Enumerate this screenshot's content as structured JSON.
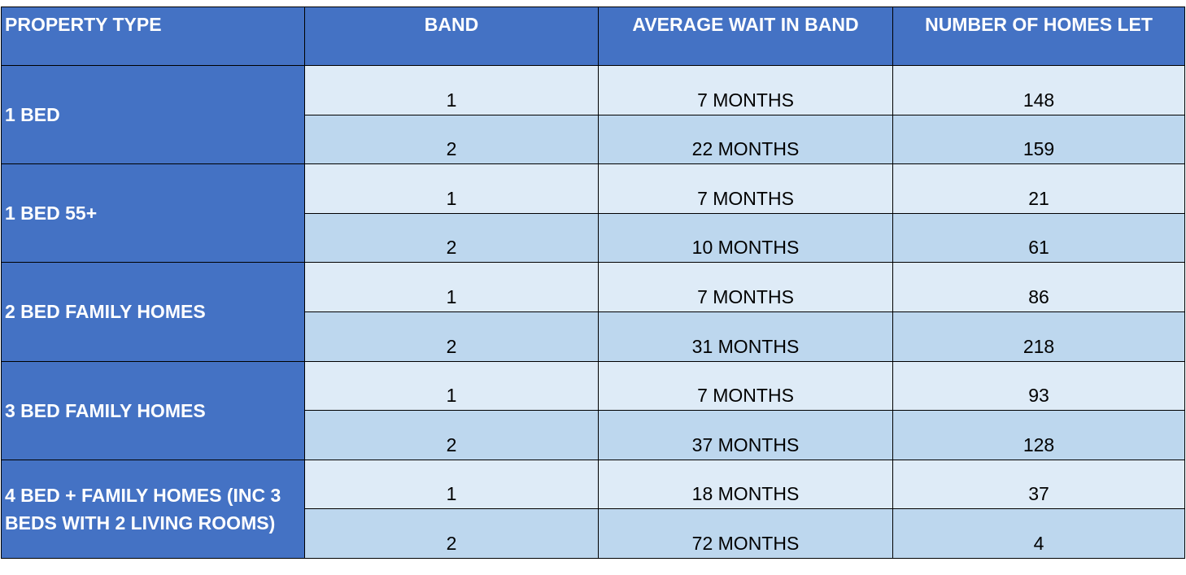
{
  "table": {
    "header": [
      "PROPERTY TYPE",
      "BAND",
      "AVERAGE WAIT IN BAND",
      "NUMBER OF HOMES LET"
    ],
    "groups": [
      {
        "type": "1 BED",
        "rows": [
          [
            1,
            "7 MONTHS",
            148
          ],
          [
            2,
            "22 MONTHS",
            159
          ]
        ]
      },
      {
        "type": "1 BED 55+",
        "rows": [
          [
            1,
            "7 MONTHS",
            21
          ],
          [
            2,
            "10 MONTHS",
            61
          ]
        ]
      },
      {
        "type": "2 BED FAMILY HOMES",
        "rows": [
          [
            1,
            "7 MONTHS",
            86
          ],
          [
            2,
            "31 MONTHS",
            218
          ]
        ]
      },
      {
        "type": "3 BED FAMILY HOMES",
        "rows": [
          [
            1,
            "7 MONTHS",
            93
          ],
          [
            2,
            "37 MONTHS",
            128
          ]
        ]
      },
      {
        "type": "4 BED + FAMILY HOMES (INC 3 BEDS WITH 2 LIVING ROOMS)",
        "rows": [
          [
            1,
            "18 MONTHS",
            37
          ],
          [
            2,
            "72 MONTHS",
            4
          ]
        ]
      }
    ]
  }
}
